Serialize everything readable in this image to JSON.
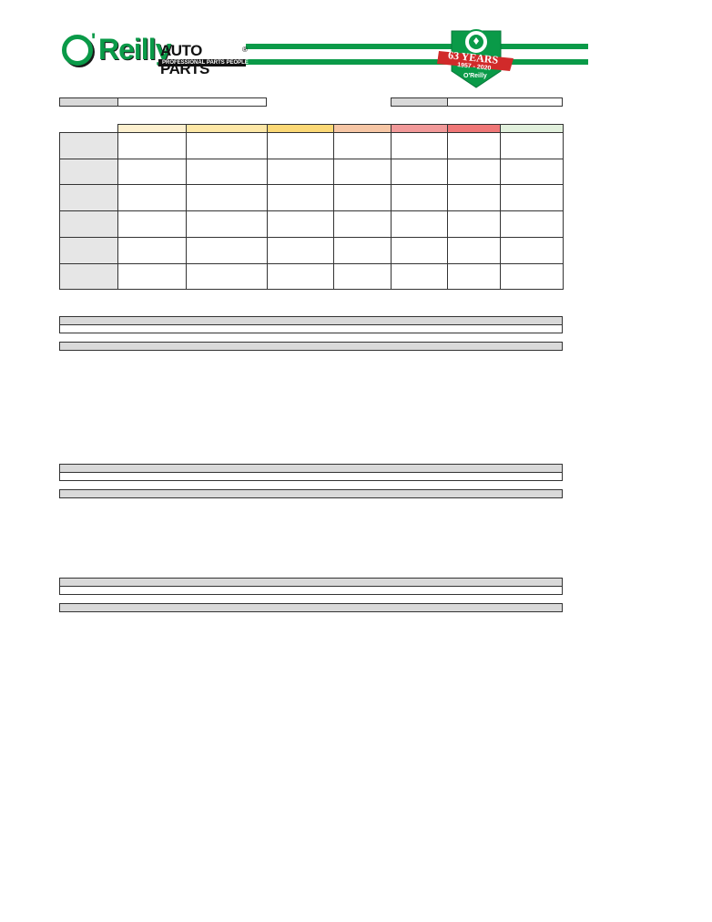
{
  "header": {
    "logo": {
      "o_letter": "O",
      "apostrophe": "'",
      "reilly": "Reilly",
      "auto_parts": "AUTO PARTS",
      "registered": "®",
      "tagline": "PROFESSIONAL PARTS PEOPLE"
    },
    "badge": {
      "years": "63 YEARS",
      "span": "1957 - 2020",
      "mini_logo": "O'Reilly"
    },
    "brand_green": "#0a9a48",
    "badge_red": "#d12a2a"
  },
  "form": {
    "field_left_label": "",
    "field_left_value": "",
    "field_right_label": "",
    "field_right_value": ""
  },
  "grid": {
    "header_colors": [
      "#fdf0cf",
      "#fde7a6",
      "#fbd876",
      "#f6c6a5",
      "#f19999",
      "#ef7777",
      "#e1f0dc"
    ],
    "row_count": 6
  },
  "sections": [
    {
      "title": "",
      "value": "",
      "subtitle": ""
    },
    {
      "title": "",
      "value": "",
      "subtitle": ""
    },
    {
      "title": "",
      "value": "",
      "subtitle": ""
    }
  ]
}
